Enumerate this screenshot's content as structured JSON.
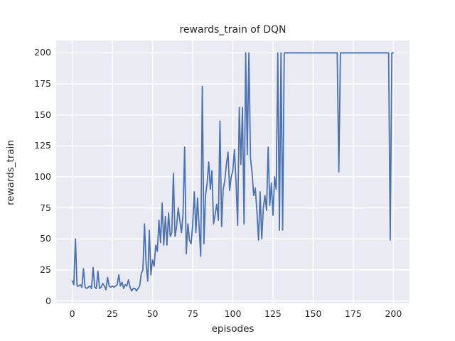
{
  "figure": {
    "kind": "matplotlib-seaborn-figure",
    "background": "#ffffff"
  },
  "chart_data": {
    "type": "line",
    "title": "rewards_train of DQN",
    "xlabel": "episodes",
    "ylabel": "rewards_train",
    "legend": false,
    "grid": true,
    "style": {
      "plot_background": "#eaeaf2",
      "gridline_color": "#ffffff",
      "line_color": "#4c72b0",
      "line_width": 1.8,
      "text_color": "#262626"
    },
    "x_ticks": [
      0,
      25,
      50,
      75,
      100,
      125,
      150,
      175,
      200
    ],
    "y_ticks": [
      0,
      25,
      50,
      75,
      100,
      125,
      150,
      175,
      200
    ],
    "xlim": [
      -10,
      210
    ],
    "ylim": [
      -2,
      210
    ],
    "x_is_index": true,
    "series": [
      {
        "name": "rewards_train",
        "values": [
          16,
          13,
          50,
          12,
          12,
          13,
          11,
          26,
          11,
          10,
          11,
          12,
          10,
          27,
          11,
          10,
          24,
          10,
          11,
          14,
          12,
          9,
          19,
          12,
          11,
          12,
          11,
          12,
          13,
          21,
          12,
          15,
          10,
          13,
          12,
          17,
          11,
          8,
          10,
          10,
          8,
          10,
          12,
          22,
          25,
          62,
          30,
          16,
          57,
          21,
          33,
          28,
          45,
          40,
          65,
          47,
          79,
          45,
          68,
          45,
          71,
          52,
          55,
          103,
          52,
          60,
          75,
          65,
          55,
          70,
          124,
          38,
          62,
          49,
          46,
          61,
          88,
          55,
          83,
          60,
          36,
          173,
          46,
          85,
          95,
          112,
          90,
          105,
          62,
          70,
          78,
          65,
          145,
          60,
          90,
          97,
          110,
          120,
          89,
          100,
          105,
          122,
          96,
          61,
          156,
          110,
          156,
          62,
          200,
          118,
          200,
          115,
          103,
          85,
          91,
          72,
          49,
          88,
          50,
          75,
          85,
          73,
          124,
          77,
          95,
          69,
          100,
          90,
          200,
          57,
          200,
          57,
          200,
          200,
          200,
          200,
          200,
          200,
          200,
          200,
          200,
          200,
          200,
          200,
          200,
          200,
          200,
          200,
          200,
          200,
          200,
          200,
          200,
          200,
          200,
          200,
          200,
          200,
          200,
          200,
          200,
          200,
          200,
          200,
          200,
          200,
          104,
          200,
          200,
          200,
          200,
          200,
          200,
          200,
          200,
          200,
          200,
          200,
          200,
          200,
          200,
          200,
          200,
          200,
          200,
          200,
          200,
          200,
          200,
          200,
          200,
          200,
          200,
          200,
          200,
          200,
          200,
          200,
          49,
          200,
          200
        ]
      }
    ]
  }
}
